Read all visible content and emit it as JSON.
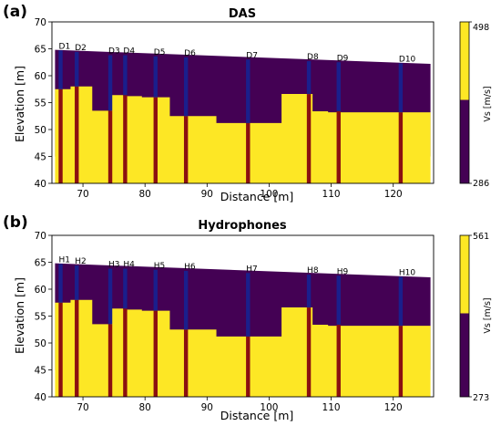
{
  "panels": [
    {
      "panel_label": "(a)",
      "title": "DAS",
      "xlabel": "Distance [m]",
      "ylabel": "Elevation [m]",
      "colorbar": {
        "label": "Vs [m/s]",
        "min_label": "286",
        "max_label": "498"
      },
      "boreholes": [
        "D1",
        "D2",
        "D3",
        "D4",
        "D5",
        "D6",
        "D7",
        "D8",
        "D9",
        "D10"
      ]
    },
    {
      "panel_label": "(b)",
      "title": "Hydrophones",
      "xlabel": "Distance [m]",
      "ylabel": "Elevation [m]",
      "colorbar": {
        "label": "Vs [m/s]",
        "min_label": "273",
        "max_label": "561"
      },
      "boreholes": [
        "H1",
        "H2",
        "H3",
        "H4",
        "H5",
        "H6",
        "H7",
        "H8",
        "H9",
        "H10"
      ]
    }
  ],
  "colors": {
    "low_velocity": "#440154",
    "high_velocity": "#fde725",
    "borehole_top": "#1a1f8c",
    "borehole_bottom": "#8b1010"
  },
  "chart_data": [
    {
      "type": "heatmap",
      "title": "DAS",
      "xlabel": "Distance [m]",
      "ylabel": "Elevation [m]",
      "xlim": [
        65,
        126.5
      ],
      "ylim": [
        40,
        70
      ],
      "xticks": [
        70,
        80,
        90,
        100,
        110,
        120
      ],
      "yticks": [
        40,
        45,
        50,
        55,
        60,
        65,
        70
      ],
      "colorbar_range": [
        286,
        498
      ],
      "surface": {
        "x": [
          65.5,
          126
        ],
        "y": [
          64.8,
          62.2
        ]
      },
      "interface": [
        {
          "x": [
            65.5,
            68
          ],
          "y": 57.5
        },
        {
          "x": [
            68,
            71.5
          ],
          "y": 58.0
        },
        {
          "x": [
            71.5,
            74.5
          ],
          "y": 53.5
        },
        {
          "x": [
            74.5,
            76.5
          ],
          "y": 56.4
        },
        {
          "x": [
            76.5,
            79.5
          ],
          "y": 56.2
        },
        {
          "x": [
            79.5,
            84
          ],
          "y": 56.0
        },
        {
          "x": [
            84,
            91.5
          ],
          "y": 52.5
        },
        {
          "x": [
            91.5,
            102
          ],
          "y": 51.2
        },
        {
          "x": [
            102,
            107
          ],
          "y": 56.6
        },
        {
          "x": [
            107,
            109.5
          ],
          "y": 53.4
        },
        {
          "x": [
            109.5,
            126
          ],
          "y": 53.2
        }
      ],
      "boreholes": [
        {
          "name": "D1",
          "x": 66.4,
          "top": 64.7,
          "split": 57.5
        },
        {
          "name": "D2",
          "x": 69.0,
          "top": 64.4,
          "split": 58.0
        },
        {
          "name": "D3",
          "x": 74.4,
          "top": 63.8,
          "split": 53.5
        },
        {
          "name": "D4",
          "x": 76.8,
          "top": 63.8,
          "split": 56.4
        },
        {
          "name": "D5",
          "x": 81.7,
          "top": 63.6,
          "split": 56.0
        },
        {
          "name": "D6",
          "x": 86.6,
          "top": 63.4,
          "split": 52.5
        },
        {
          "name": "D7",
          "x": 96.6,
          "top": 63.0,
          "split": 51.2
        },
        {
          "name": "D8",
          "x": 106.4,
          "top": 62.7,
          "split": 56.6
        },
        {
          "name": "D9",
          "x": 111.2,
          "top": 62.5,
          "split": 53.4
        },
        {
          "name": "D10",
          "x": 121.2,
          "top": 62.3,
          "split": 53.2
        }
      ]
    },
    {
      "type": "heatmap",
      "title": "Hydrophones",
      "xlabel": "Distance [m]",
      "ylabel": "Elevation [m]",
      "xlim": [
        65,
        126.5
      ],
      "ylim": [
        40,
        70
      ],
      "xticks": [
        70,
        80,
        90,
        100,
        110,
        120
      ],
      "yticks": [
        40,
        45,
        50,
        55,
        60,
        65,
        70
      ],
      "colorbar_range": [
        273,
        561
      ],
      "surface": {
        "x": [
          65.5,
          126
        ],
        "y": [
          64.8,
          62.2
        ]
      },
      "interface": [
        {
          "x": [
            65.5,
            68
          ],
          "y": 57.5
        },
        {
          "x": [
            68,
            71.5
          ],
          "y": 58.0
        },
        {
          "x": [
            71.5,
            74.5
          ],
          "y": 53.5
        },
        {
          "x": [
            74.5,
            76.5
          ],
          "y": 56.4
        },
        {
          "x": [
            76.5,
            79.5
          ],
          "y": 56.2
        },
        {
          "x": [
            79.5,
            84
          ],
          "y": 56.0
        },
        {
          "x": [
            84,
            91.5
          ],
          "y": 52.5
        },
        {
          "x": [
            91.5,
            102
          ],
          "y": 51.2
        },
        {
          "x": [
            102,
            107
          ],
          "y": 56.6
        },
        {
          "x": [
            107,
            109.5
          ],
          "y": 53.4
        },
        {
          "x": [
            109.5,
            126
          ],
          "y": 53.2
        }
      ],
      "boreholes": [
        {
          "name": "H1",
          "x": 66.4,
          "top": 64.7,
          "split": 57.5
        },
        {
          "name": "H2",
          "x": 69.0,
          "top": 64.4,
          "split": 58.0
        },
        {
          "name": "H3",
          "x": 74.4,
          "top": 63.8,
          "split": 53.5
        },
        {
          "name": "H4",
          "x": 76.8,
          "top": 63.8,
          "split": 56.4
        },
        {
          "name": "H5",
          "x": 81.7,
          "top": 63.6,
          "split": 56.0
        },
        {
          "name": "H6",
          "x": 86.6,
          "top": 63.4,
          "split": 52.5
        },
        {
          "name": "H7",
          "x": 96.6,
          "top": 63.0,
          "split": 51.2
        },
        {
          "name": "H8",
          "x": 106.4,
          "top": 62.7,
          "split": 56.6
        },
        {
          "name": "H9",
          "x": 111.2,
          "top": 62.5,
          "split": 53.4
        },
        {
          "name": "H10",
          "x": 121.2,
          "top": 62.3,
          "split": 53.2
        }
      ]
    }
  ]
}
